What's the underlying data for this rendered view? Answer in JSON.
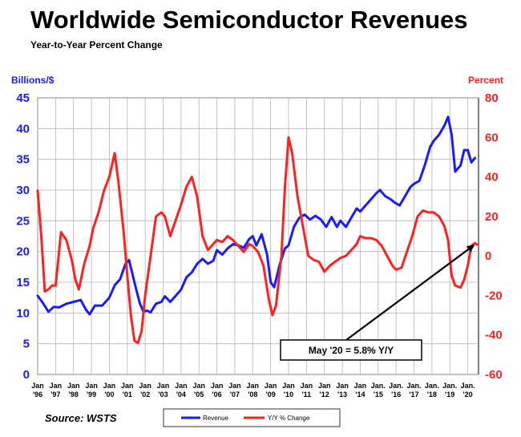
{
  "chart_data": {
    "type": "line",
    "title": "Worldwide Semiconductor Revenues",
    "subtitle": "Year-to-Year Percent Change",
    "left_axis": {
      "label": "Billions/$",
      "range": [
        0,
        45
      ],
      "ticks": [
        "0",
        "5",
        "10",
        "15",
        "20",
        "25",
        "30",
        "35",
        "40",
        "45"
      ],
      "color": "#1a1aff"
    },
    "right_axis": {
      "label": "Percent",
      "range": [
        -60,
        80
      ],
      "ticks": [
        "-60",
        "-40",
        "-20",
        "0",
        "20",
        "40",
        "60",
        "80"
      ],
      "color": "#ff2020"
    },
    "x_axis": {
      "range": [
        1996,
        2020.6
      ],
      "ticks_top": [
        "Jan",
        "Jan",
        "Jan",
        "Jan",
        "Jan",
        "Jan",
        "Jan",
        "Jan",
        "Jan",
        "Jan",
        "Jan",
        "Jan",
        "Jan",
        "Jan",
        "Jan",
        "Jan",
        "Jan",
        "Jan",
        "Jan",
        "Jan.",
        "Jan.",
        "Jan.",
        "Jan.",
        "Jan.",
        "Jan."
      ],
      "ticks_bottom": [
        "'96",
        "'97",
        "'98",
        "'99",
        "'00",
        "'01",
        "'02",
        "'03",
        "'04",
        "'05",
        "'06",
        "'07",
        "'08",
        "'09",
        "'10",
        "'11",
        "'12",
        "'13",
        "'14",
        "'15",
        "'16",
        "'17",
        "'18",
        "'19",
        "'20"
      ]
    },
    "grid": true,
    "legend_position": "bottom-center",
    "series": [
      {
        "name": "Revenue",
        "axis": "left",
        "color": "#1a1aff",
        "points": [
          [
            1996.0,
            12.8
          ],
          [
            1996.3,
            11.6
          ],
          [
            1996.6,
            10.2
          ],
          [
            1996.9,
            11.0
          ],
          [
            1997.2,
            10.9
          ],
          [
            1997.6,
            11.5
          ],
          [
            1998.0,
            11.8
          ],
          [
            1998.4,
            12.1
          ],
          [
            1998.7,
            10.5
          ],
          [
            1998.9,
            9.8
          ],
          [
            1999.2,
            11.2
          ],
          [
            1999.6,
            11.2
          ],
          [
            2000.0,
            12.5
          ],
          [
            2000.3,
            14.5
          ],
          [
            2000.6,
            15.5
          ],
          [
            2000.9,
            18.0
          ],
          [
            2001.1,
            18.6
          ],
          [
            2001.4,
            15.0
          ],
          [
            2001.7,
            11.6
          ],
          [
            2001.9,
            10.2
          ],
          [
            2002.1,
            10.4
          ],
          [
            2002.3,
            10.1
          ],
          [
            2002.6,
            11.5
          ],
          [
            2002.9,
            11.8
          ],
          [
            2003.1,
            12.7
          ],
          [
            2003.4,
            11.8
          ],
          [
            2003.7,
            12.8
          ],
          [
            2004.0,
            13.8
          ],
          [
            2004.3,
            15.8
          ],
          [
            2004.6,
            16.6
          ],
          [
            2004.9,
            18.0
          ],
          [
            2005.2,
            18.8
          ],
          [
            2005.5,
            18.0
          ],
          [
            2005.8,
            18.5
          ],
          [
            2006.0,
            20.2
          ],
          [
            2006.3,
            19.5
          ],
          [
            2006.6,
            20.5
          ],
          [
            2006.9,
            21.2
          ],
          [
            2007.2,
            21.0
          ],
          [
            2007.5,
            20.6
          ],
          [
            2007.8,
            22.0
          ],
          [
            2008.0,
            22.5
          ],
          [
            2008.2,
            21.0
          ],
          [
            2008.5,
            22.8
          ],
          [
            2008.8,
            19.5
          ],
          [
            2009.0,
            15.0
          ],
          [
            2009.2,
            14.2
          ],
          [
            2009.5,
            17.8
          ],
          [
            2009.8,
            20.5
          ],
          [
            2010.0,
            21.0
          ],
          [
            2010.3,
            24.0
          ],
          [
            2010.6,
            25.5
          ],
          [
            2010.9,
            26.0
          ],
          [
            2011.2,
            25.2
          ],
          [
            2011.5,
            25.8
          ],
          [
            2011.8,
            25.2
          ],
          [
            2012.1,
            24.0
          ],
          [
            2012.4,
            25.6
          ],
          [
            2012.7,
            24.0
          ],
          [
            2012.9,
            25.0
          ],
          [
            2013.2,
            24.0
          ],
          [
            2013.5,
            25.5
          ],
          [
            2013.8,
            27.0
          ],
          [
            2014.0,
            26.5
          ],
          [
            2014.3,
            27.5
          ],
          [
            2014.6,
            28.5
          ],
          [
            2014.9,
            29.5
          ],
          [
            2015.1,
            30.0
          ],
          [
            2015.4,
            29.0
          ],
          [
            2015.7,
            28.5
          ],
          [
            2015.9,
            28.0
          ],
          [
            2016.2,
            27.5
          ],
          [
            2016.5,
            29.0
          ],
          [
            2016.8,
            30.5
          ],
          [
            2017.0,
            31.0
          ],
          [
            2017.3,
            31.5
          ],
          [
            2017.6,
            34.0
          ],
          [
            2017.9,
            37.0
          ],
          [
            2018.1,
            38.0
          ],
          [
            2018.4,
            39.0
          ],
          [
            2018.7,
            40.5
          ],
          [
            2018.9,
            41.9
          ],
          [
            2019.1,
            39.0
          ],
          [
            2019.3,
            33.0
          ],
          [
            2019.6,
            34.0
          ],
          [
            2019.8,
            36.5
          ],
          [
            2020.0,
            36.5
          ],
          [
            2020.2,
            34.5
          ],
          [
            2020.4,
            35.2
          ]
        ]
      },
      {
        "name": "Y/Y % Change",
        "axis": "right",
        "color": "#ff2020",
        "points": [
          [
            1996.0,
            33
          ],
          [
            1996.2,
            10
          ],
          [
            1996.4,
            -18
          ],
          [
            1996.6,
            -17
          ],
          [
            1996.8,
            -15
          ],
          [
            1997.0,
            -15
          ],
          [
            1997.3,
            12
          ],
          [
            1997.6,
            8
          ],
          [
            1997.9,
            -2
          ],
          [
            1998.1,
            -12
          ],
          [
            1998.3,
            -17
          ],
          [
            1998.6,
            -4
          ],
          [
            1998.9,
            5
          ],
          [
            1999.1,
            14
          ],
          [
            1999.4,
            22
          ],
          [
            1999.7,
            33
          ],
          [
            2000.0,
            40
          ],
          [
            2000.3,
            52
          ],
          [
            2000.5,
            38
          ],
          [
            2000.8,
            12
          ],
          [
            2001.0,
            -10
          ],
          [
            2001.2,
            -30
          ],
          [
            2001.4,
            -43
          ],
          [
            2001.6,
            -44
          ],
          [
            2001.8,
            -38
          ],
          [
            2002.0,
            -20
          ],
          [
            2002.3,
            0
          ],
          [
            2002.6,
            20
          ],
          [
            2002.9,
            22
          ],
          [
            2003.1,
            20
          ],
          [
            2003.4,
            10
          ],
          [
            2003.7,
            18
          ],
          [
            2004.0,
            26
          ],
          [
            2004.3,
            35
          ],
          [
            2004.6,
            40
          ],
          [
            2004.9,
            30
          ],
          [
            2005.2,
            10
          ],
          [
            2005.5,
            3
          ],
          [
            2005.8,
            6
          ],
          [
            2006.0,
            8
          ],
          [
            2006.3,
            7
          ],
          [
            2006.6,
            10
          ],
          [
            2006.9,
            8
          ],
          [
            2007.2,
            5
          ],
          [
            2007.5,
            2
          ],
          [
            2007.8,
            6
          ],
          [
            2008.0,
            5
          ],
          [
            2008.3,
            2
          ],
          [
            2008.6,
            -5
          ],
          [
            2008.9,
            -22
          ],
          [
            2009.1,
            -30
          ],
          [
            2009.3,
            -25
          ],
          [
            2009.6,
            0
          ],
          [
            2009.8,
            35
          ],
          [
            2010.0,
            60
          ],
          [
            2010.2,
            52
          ],
          [
            2010.5,
            30
          ],
          [
            2010.8,
            15
          ],
          [
            2011.1,
            0
          ],
          [
            2011.4,
            -2
          ],
          [
            2011.7,
            -3
          ],
          [
            2012.0,
            -8
          ],
          [
            2012.3,
            -5
          ],
          [
            2012.6,
            -3
          ],
          [
            2012.9,
            -1
          ],
          [
            2013.2,
            0
          ],
          [
            2013.5,
            3
          ],
          [
            2013.8,
            6
          ],
          [
            2014.0,
            10
          ],
          [
            2014.3,
            9
          ],
          [
            2014.6,
            9
          ],
          [
            2014.9,
            8
          ],
          [
            2015.2,
            5
          ],
          [
            2015.5,
            0
          ],
          [
            2015.8,
            -5
          ],
          [
            2016.0,
            -7
          ],
          [
            2016.3,
            -6
          ],
          [
            2016.6,
            2
          ],
          [
            2016.9,
            10
          ],
          [
            2017.2,
            20
          ],
          [
            2017.5,
            23
          ],
          [
            2017.8,
            22
          ],
          [
            2018.1,
            22
          ],
          [
            2018.4,
            20
          ],
          [
            2018.7,
            15
          ],
          [
            2018.9,
            8
          ],
          [
            2019.1,
            -10
          ],
          [
            2019.3,
            -15
          ],
          [
            2019.6,
            -16
          ],
          [
            2019.8,
            -12
          ],
          [
            2020.0,
            -5
          ],
          [
            2020.2,
            5
          ],
          [
            2020.4,
            6.5
          ],
          [
            2020.5,
            5.8
          ]
        ]
      }
    ],
    "annotation": {
      "text": "May '20 = 5.8% Y/Y",
      "target_x": 2020.4,
      "target_y_percent": 5.8
    },
    "source": "Source: WSTS"
  }
}
